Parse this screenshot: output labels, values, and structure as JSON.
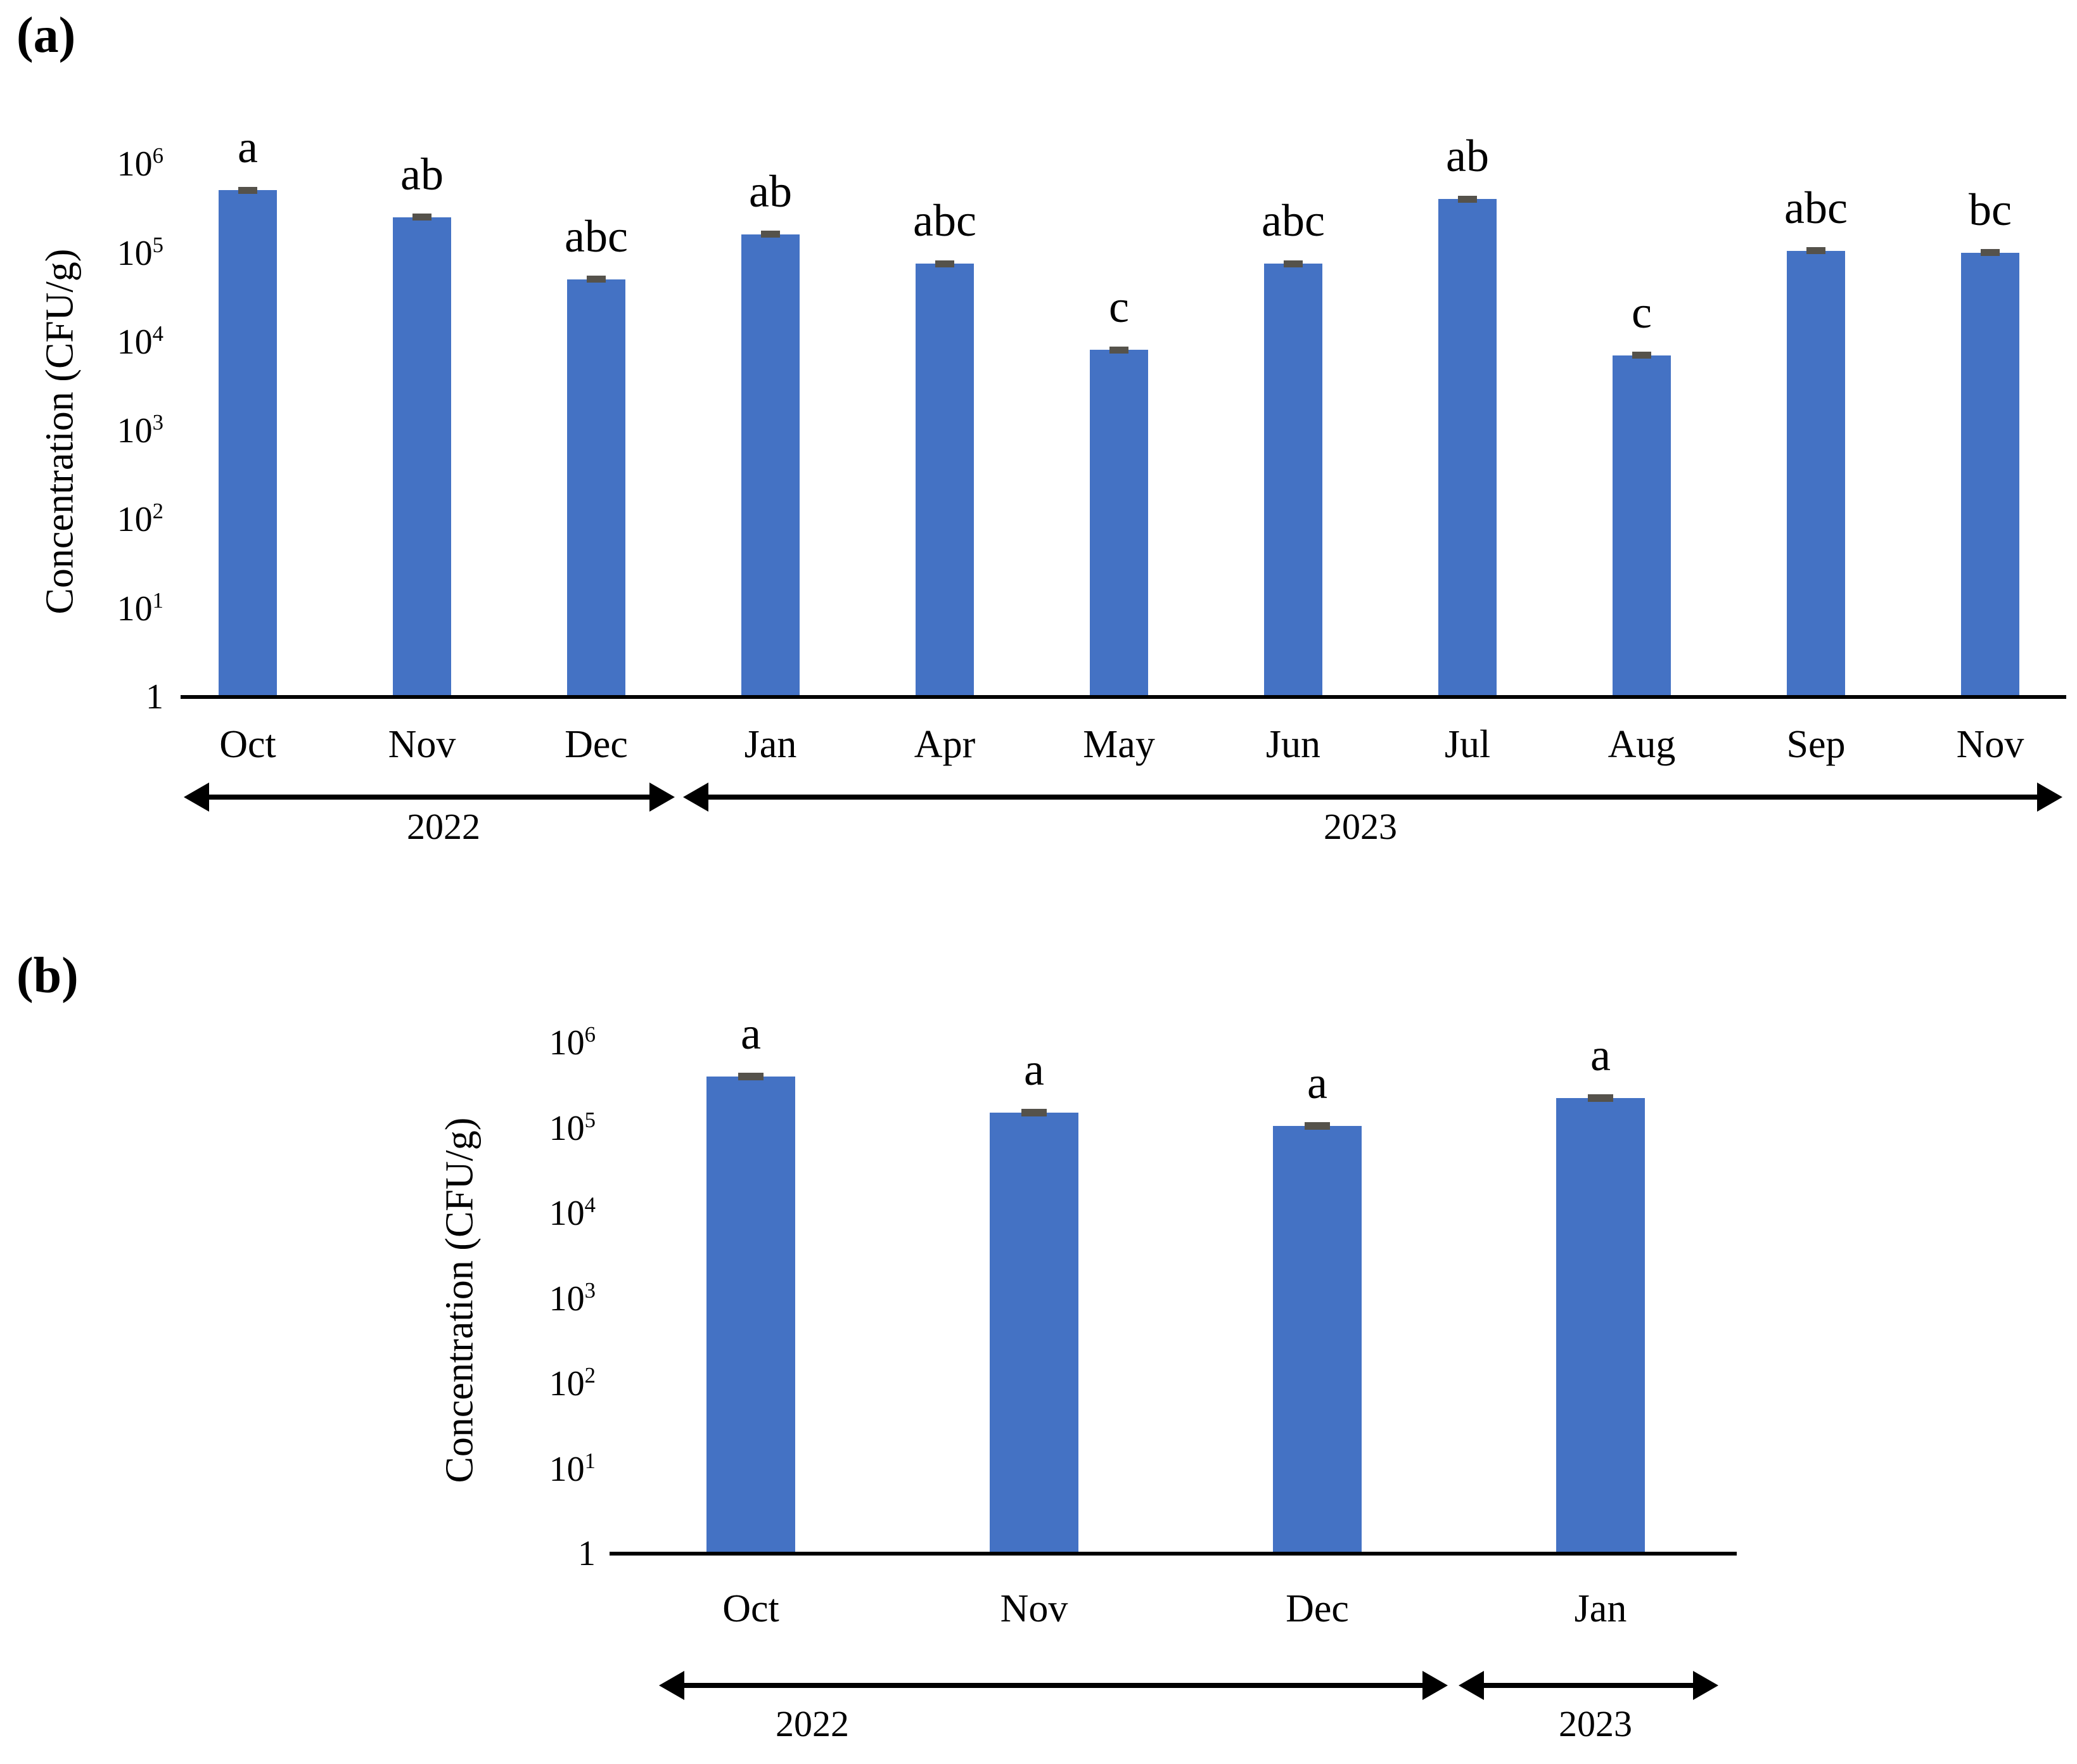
{
  "colors": {
    "bar": "#4472C4",
    "error_cap": "#55524B",
    "axis": "#000000",
    "text": "#000000",
    "background": "#FFFFFF"
  },
  "panels": {
    "a": {
      "label": "(a)"
    },
    "b": {
      "label": "(b)"
    }
  },
  "chart_data": [
    {
      "panel": "a",
      "type": "bar",
      "yscale": "log",
      "title": "",
      "xlabel": "",
      "ylabel": "Concentration (CFU/g)",
      "ylim": [
        1,
        1000000
      ],
      "grid": "off",
      "legend": "none",
      "y_axis": {
        "ticks": [
          {
            "base": "1",
            "exp": "",
            "pow": 0
          },
          {
            "base": "10",
            "exp": "1",
            "pow": 1
          },
          {
            "base": "10",
            "exp": "2",
            "pow": 2
          },
          {
            "base": "10",
            "exp": "3",
            "pow": 3
          },
          {
            "base": "10",
            "exp": "4",
            "pow": 4
          },
          {
            "base": "10",
            "exp": "5",
            "pow": 5
          },
          {
            "base": "10",
            "exp": "6",
            "pow": 6
          }
        ]
      },
      "categories": [
        "Oct",
        "Nov",
        "Dec",
        "Jan",
        "Apr",
        "May",
        "Jun",
        "Jul",
        "Aug",
        "Sep",
        "Nov"
      ],
      "values": [
        500000,
        250000,
        50000,
        160000,
        75000,
        8000,
        75000,
        400000,
        7000,
        105000,
        100000
      ],
      "sig_letters": [
        "a",
        "ab",
        "abc",
        "ab",
        "abc",
        "c",
        "abc",
        "ab",
        "c",
        "abc",
        "bc"
      ],
      "error_bars": "small dark caps at bar tops",
      "year_groups": [
        {
          "label": "2022",
          "categories": [
            "Oct",
            "Nov",
            "Dec"
          ]
        },
        {
          "label": "2023",
          "categories": [
            "Jan",
            "Apr",
            "May",
            "Jun",
            "Jul",
            "Aug",
            "Sep",
            "Nov"
          ]
        }
      ]
    },
    {
      "panel": "b",
      "type": "bar",
      "yscale": "log",
      "title": "",
      "xlabel": "",
      "ylabel": "Concentration (CFU/g)",
      "ylim": [
        1,
        1000000
      ],
      "grid": "off",
      "legend": "none",
      "y_axis": {
        "ticks": [
          {
            "base": "1",
            "exp": "",
            "pow": 0
          },
          {
            "base": "10",
            "exp": "1",
            "pow": 1
          },
          {
            "base": "10",
            "exp": "2",
            "pow": 2
          },
          {
            "base": "10",
            "exp": "3",
            "pow": 3
          },
          {
            "base": "10",
            "exp": "4",
            "pow": 4
          },
          {
            "base": "10",
            "exp": "5",
            "pow": 5
          },
          {
            "base": "10",
            "exp": "6",
            "pow": 6
          }
        ]
      },
      "categories": [
        "Oct",
        "Nov",
        "Dec",
        "Jan"
      ],
      "values": [
        400000,
        150000,
        105000,
        220000
      ],
      "sig_letters": [
        "a",
        "a",
        "a",
        "a"
      ],
      "error_bars": "small dark caps at bar tops",
      "year_groups": [
        {
          "label": "2022",
          "categories": [
            "Oct",
            "Nov",
            "Dec"
          ]
        },
        {
          "label": "2023",
          "categories": [
            "Jan"
          ]
        }
      ]
    }
  ]
}
